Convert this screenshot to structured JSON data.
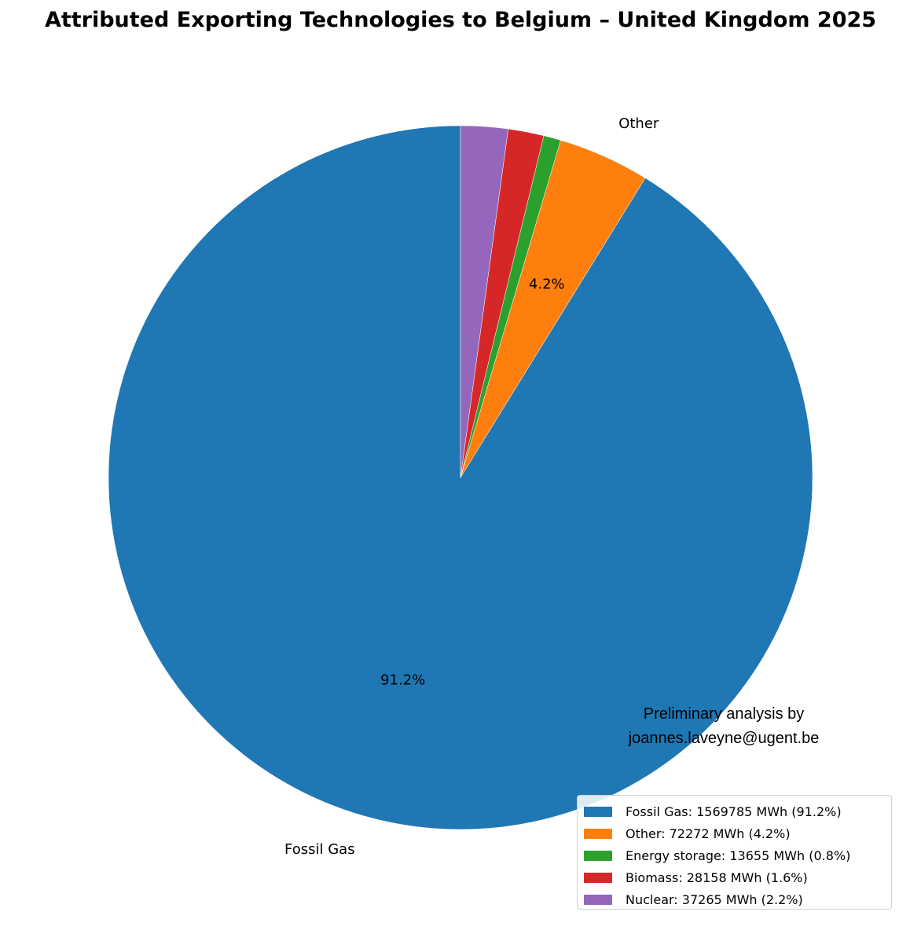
{
  "chart_data": {
    "type": "pie",
    "title": "Attributed Exporting Technologies to Belgium – United Kingdom 2025",
    "slices": [
      {
        "label": "Fossil Gas",
        "value": 1569785,
        "percent": 91.2,
        "color": "#1f77b4",
        "show_label": true,
        "show_pct": true
      },
      {
        "label": "Other",
        "value": 72272,
        "percent": 4.2,
        "color": "#ff7f0e",
        "show_label": true,
        "show_pct": true
      },
      {
        "label": "Energy storage",
        "value": 13655,
        "percent": 0.8,
        "color": "#2ca02c",
        "show_label": false,
        "show_pct": false
      },
      {
        "label": "Biomass",
        "value": 28158,
        "percent": 1.6,
        "color": "#d62728",
        "show_label": false,
        "show_pct": false
      },
      {
        "label": "Nuclear",
        "value": 37265,
        "percent": 2.2,
        "color": "#9467bd",
        "show_label": false,
        "show_pct": false
      }
    ],
    "pct_labels": [
      "91.2%",
      "4.2%"
    ],
    "start_angle_deg": 90,
    "direction": "counterclockwise",
    "legend": {
      "placement": "lower-right",
      "entries": [
        "Fossil Gas: 1569785 MWh (91.2%)",
        "Other: 72272 MWh (4.2%)",
        "Energy storage: 13655 MWh (0.8%)",
        "Biomass: 28158 MWh (1.6%)",
        "Nuclear: 37265 MWh (2.2%)"
      ]
    }
  },
  "credit": {
    "line1": "Preliminary analysis by",
    "line2": "joannes.laveyne@ugent.be"
  }
}
